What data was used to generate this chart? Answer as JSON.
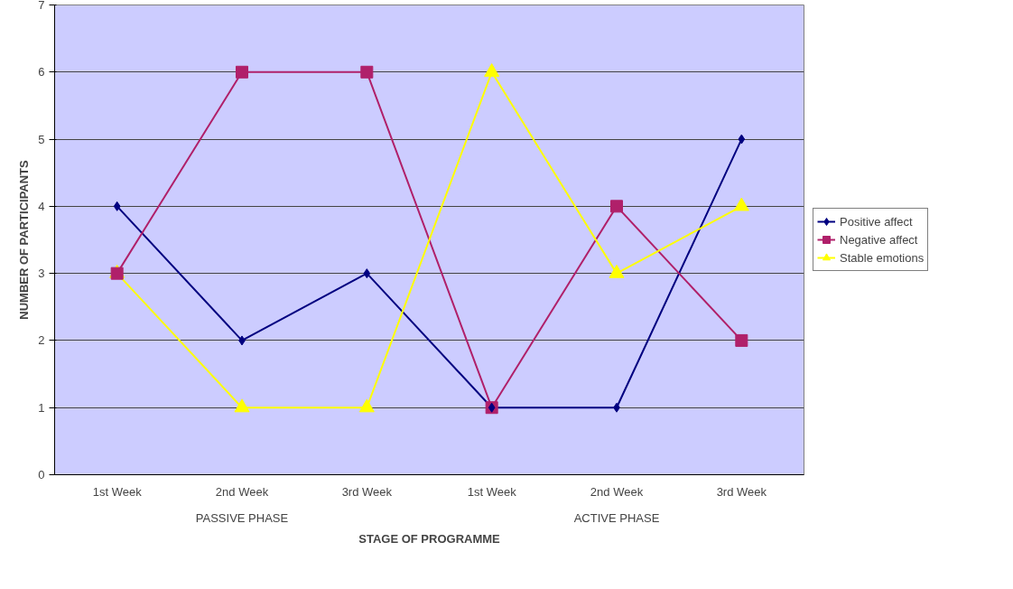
{
  "chart_data": {
    "type": "line",
    "xlabel": "STAGE OF PROGRAMME",
    "ylabel": "NUMBER OF PARTICIPANTS",
    "categories": [
      "1st Week",
      "2nd Week",
      "3rd Week",
      "1st Week",
      "2nd Week",
      "3rd Week"
    ],
    "annotations": [
      "PASSIVE PHASE",
      "ACTIVE PHASE"
    ],
    "series": [
      {
        "name": "Positive affect",
        "color": "#000080",
        "marker": "diamond",
        "values": [
          4,
          2,
          3,
          1,
          1,
          5
        ]
      },
      {
        "name": "Negative affect",
        "color": "#b0206a",
        "marker": "square",
        "values": [
          3,
          6,
          6,
          1,
          4,
          2
        ]
      },
      {
        "name": "Stable emotions",
        "color": "#ffff00",
        "marker": "triangle",
        "values": [
          3,
          1,
          1,
          6,
          3,
          4
        ]
      }
    ],
    "ylim": [
      0,
      7
    ],
    "yticks": [
      0,
      1,
      2,
      3,
      4,
      5,
      6,
      7
    ],
    "grid": "y",
    "legend": "right"
  }
}
